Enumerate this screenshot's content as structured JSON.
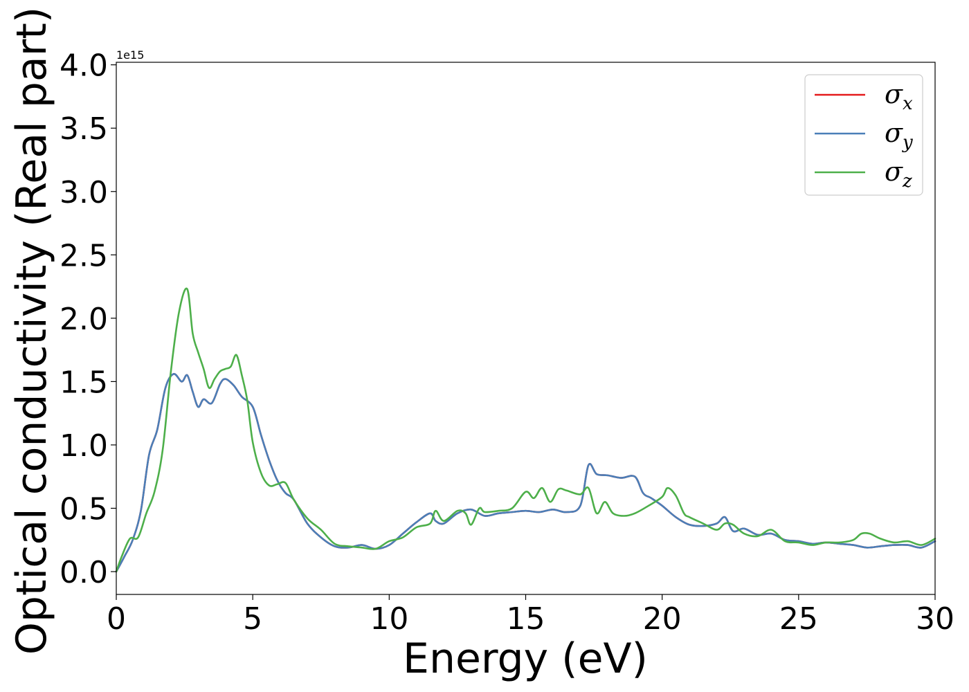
{
  "chart_data": {
    "type": "line",
    "xlabel": "Energy (eV)",
    "ylabel": "Optical conductivity (Real part)",
    "y_offset_label": "1e15",
    "xlim": [
      0,
      30
    ],
    "ylim": [
      -0.18,
      4.02
    ],
    "x_ticks": [
      0,
      5,
      10,
      15,
      20,
      25,
      30
    ],
    "x_tick_labels": [
      "0",
      "5",
      "10",
      "15",
      "20",
      "25",
      "30"
    ],
    "y_ticks": [
      0.0,
      0.5,
      1.0,
      1.5,
      2.0,
      2.5,
      3.0,
      3.5,
      4.0
    ],
    "y_tick_labels": [
      "0.0",
      "0.5",
      "1.0",
      "1.5",
      "2.0",
      "2.5",
      "3.0",
      "3.5",
      "4.0"
    ],
    "grid": false,
    "legend_position": "top-right",
    "series": [
      {
        "name": "σx",
        "label_base": "σ",
        "label_sub": "x",
        "color": "#e41a1c",
        "x": [
          0,
          0.3,
          0.6,
          0.9,
          1.2,
          1.5,
          1.8,
          2.1,
          2.4,
          2.6,
          2.8,
          3.0,
          3.2,
          3.5,
          3.8,
          4.0,
          4.3,
          4.6,
          5.0,
          5.3,
          5.6,
          5.9,
          6.2,
          6.5,
          7.0,
          7.5,
          8.0,
          8.5,
          9.0,
          9.5,
          10.0,
          10.5,
          11.0,
          11.5,
          11.7,
          12.0,
          12.5,
          13.0,
          13.5,
          14.0,
          14.5,
          15.0,
          15.5,
          16.0,
          16.5,
          17.0,
          17.3,
          17.6,
          18.0,
          18.5,
          19.0,
          19.3,
          19.6,
          20.0,
          20.5,
          21.0,
          21.5,
          22.0,
          22.3,
          22.6,
          23.0,
          23.5,
          24.0,
          24.5,
          25.0,
          25.5,
          26.0,
          26.5,
          27.0,
          27.5,
          28.0,
          28.5,
          29.0,
          29.5,
          30.0
        ],
        "y": [
          0.0,
          0.12,
          0.25,
          0.48,
          0.92,
          1.12,
          1.45,
          1.56,
          1.5,
          1.55,
          1.42,
          1.3,
          1.36,
          1.33,
          1.48,
          1.52,
          1.47,
          1.38,
          1.3,
          1.08,
          0.88,
          0.72,
          0.62,
          0.57,
          0.38,
          0.27,
          0.2,
          0.19,
          0.21,
          0.18,
          0.21,
          0.3,
          0.39,
          0.46,
          0.4,
          0.38,
          0.46,
          0.49,
          0.44,
          0.46,
          0.47,
          0.48,
          0.47,
          0.49,
          0.47,
          0.52,
          0.84,
          0.77,
          0.76,
          0.74,
          0.75,
          0.62,
          0.58,
          0.52,
          0.43,
          0.37,
          0.36,
          0.38,
          0.43,
          0.32,
          0.34,
          0.29,
          0.3,
          0.25,
          0.24,
          0.22,
          0.23,
          0.22,
          0.21,
          0.19,
          0.2,
          0.21,
          0.21,
          0.19,
          0.24
        ]
      },
      {
        "name": "σy",
        "label_base": "σ",
        "label_sub": "y",
        "color": "#4a7fb8",
        "x": [
          0,
          0.3,
          0.6,
          0.9,
          1.2,
          1.5,
          1.8,
          2.1,
          2.4,
          2.6,
          2.8,
          3.0,
          3.2,
          3.5,
          3.8,
          4.0,
          4.3,
          4.6,
          5.0,
          5.3,
          5.6,
          5.9,
          6.2,
          6.5,
          7.0,
          7.5,
          8.0,
          8.5,
          9.0,
          9.5,
          10.0,
          10.5,
          11.0,
          11.5,
          11.7,
          12.0,
          12.5,
          13.0,
          13.5,
          14.0,
          14.5,
          15.0,
          15.5,
          16.0,
          16.5,
          17.0,
          17.3,
          17.6,
          18.0,
          18.5,
          19.0,
          19.3,
          19.6,
          20.0,
          20.5,
          21.0,
          21.5,
          22.0,
          22.3,
          22.6,
          23.0,
          23.5,
          24.0,
          24.5,
          25.0,
          25.5,
          26.0,
          26.5,
          27.0,
          27.5,
          28.0,
          28.5,
          29.0,
          29.5,
          30.0
        ],
        "y": [
          0.0,
          0.12,
          0.25,
          0.48,
          0.92,
          1.12,
          1.45,
          1.56,
          1.5,
          1.55,
          1.42,
          1.3,
          1.36,
          1.33,
          1.48,
          1.52,
          1.47,
          1.38,
          1.3,
          1.08,
          0.88,
          0.72,
          0.62,
          0.57,
          0.38,
          0.27,
          0.2,
          0.19,
          0.21,
          0.18,
          0.21,
          0.3,
          0.39,
          0.46,
          0.4,
          0.38,
          0.46,
          0.49,
          0.44,
          0.46,
          0.47,
          0.48,
          0.47,
          0.49,
          0.47,
          0.52,
          0.84,
          0.77,
          0.76,
          0.74,
          0.75,
          0.62,
          0.58,
          0.52,
          0.43,
          0.37,
          0.36,
          0.38,
          0.43,
          0.32,
          0.34,
          0.29,
          0.3,
          0.25,
          0.24,
          0.22,
          0.23,
          0.22,
          0.21,
          0.19,
          0.2,
          0.21,
          0.21,
          0.19,
          0.24
        ]
      },
      {
        "name": "σz",
        "label_base": "σ",
        "label_sub": "z",
        "color": "#4daf4a",
        "x": [
          0,
          0.2,
          0.5,
          0.8,
          1.1,
          1.4,
          1.7,
          2.0,
          2.3,
          2.6,
          2.8,
          3.0,
          3.2,
          3.4,
          3.6,
          3.8,
          4.0,
          4.2,
          4.4,
          4.6,
          4.8,
          5.0,
          5.3,
          5.6,
          5.9,
          6.2,
          6.5,
          7.0,
          7.5,
          8.0,
          8.5,
          9.0,
          9.5,
          10.0,
          10.5,
          11.0,
          11.5,
          11.7,
          12.0,
          12.5,
          12.8,
          13.0,
          13.3,
          13.5,
          14.0,
          14.5,
          15.0,
          15.3,
          15.6,
          15.9,
          16.2,
          16.5,
          17.0,
          17.3,
          17.6,
          17.9,
          18.2,
          18.6,
          19.0,
          19.5,
          20.0,
          20.2,
          20.5,
          20.8,
          21.0,
          21.5,
          22.0,
          22.3,
          22.6,
          23.0,
          23.5,
          24.0,
          24.5,
          25.0,
          25.5,
          26.0,
          26.5,
          27.0,
          27.3,
          27.6,
          28.0,
          28.5,
          29.0,
          29.5,
          30.0
        ],
        "y": [
          0.0,
          0.12,
          0.26,
          0.27,
          0.46,
          0.63,
          0.96,
          1.58,
          2.05,
          2.23,
          1.88,
          1.73,
          1.6,
          1.45,
          1.52,
          1.58,
          1.6,
          1.62,
          1.71,
          1.55,
          1.35,
          1.02,
          0.78,
          0.68,
          0.69,
          0.7,
          0.57,
          0.42,
          0.33,
          0.22,
          0.2,
          0.19,
          0.18,
          0.24,
          0.27,
          0.35,
          0.38,
          0.48,
          0.4,
          0.48,
          0.46,
          0.37,
          0.5,
          0.47,
          0.48,
          0.5,
          0.63,
          0.58,
          0.66,
          0.55,
          0.65,
          0.64,
          0.61,
          0.66,
          0.46,
          0.55,
          0.46,
          0.44,
          0.46,
          0.52,
          0.59,
          0.66,
          0.6,
          0.46,
          0.43,
          0.38,
          0.33,
          0.38,
          0.37,
          0.3,
          0.28,
          0.33,
          0.24,
          0.23,
          0.21,
          0.23,
          0.23,
          0.25,
          0.3,
          0.3,
          0.26,
          0.23,
          0.24,
          0.21,
          0.26
        ]
      }
    ]
  }
}
